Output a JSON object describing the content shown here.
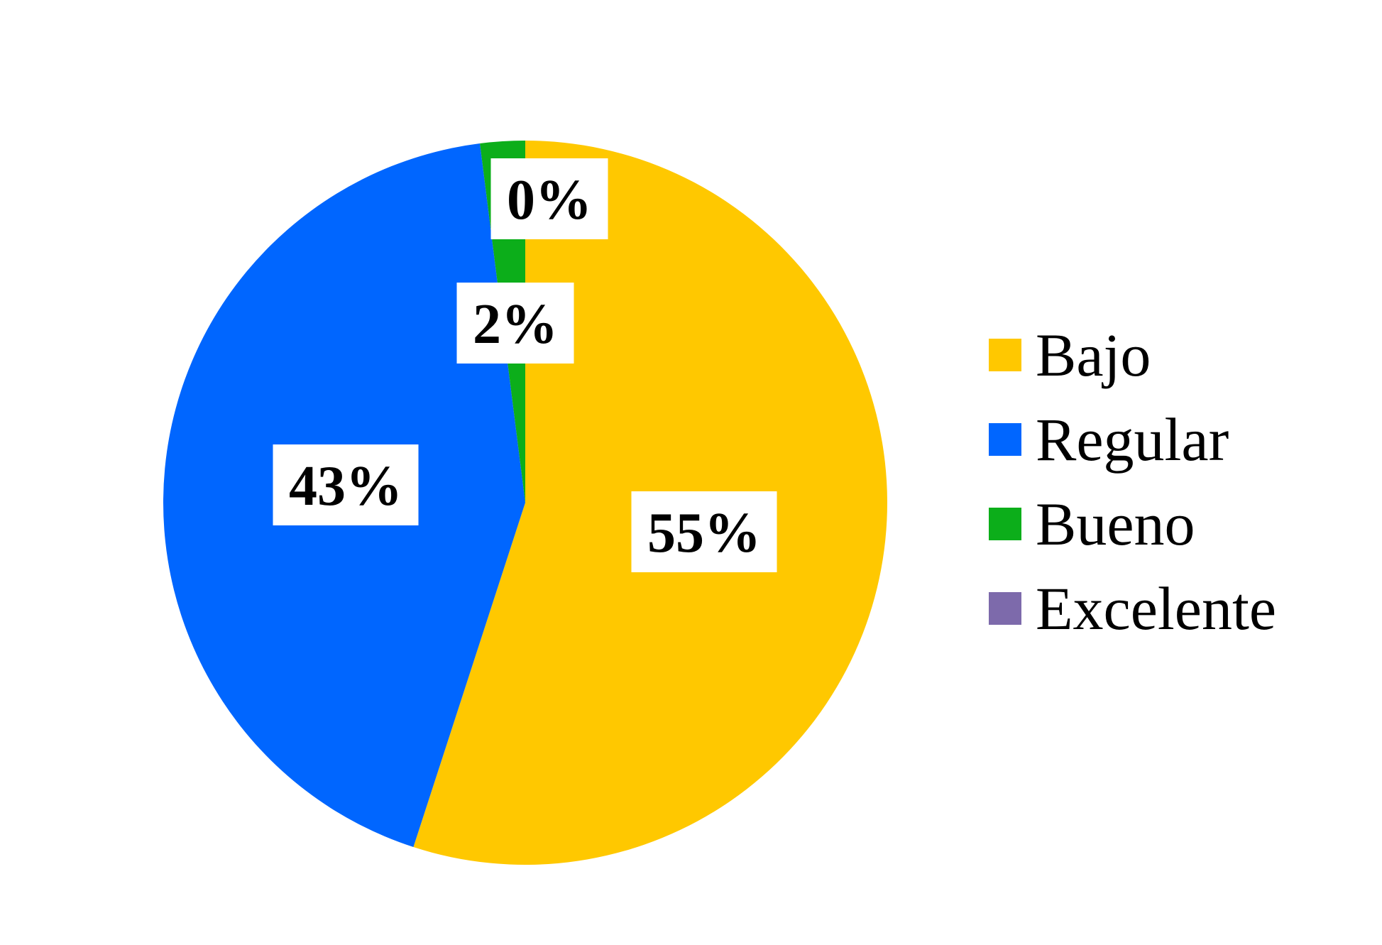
{
  "chart_data": {
    "type": "pie",
    "title": "",
    "slices": [
      {
        "name": "Bajo",
        "value": 55,
        "label": "55%",
        "color": "#FFC800"
      },
      {
        "name": "Regular",
        "value": 43,
        "label": "43%",
        "color": "#0066FF"
      },
      {
        "name": "Bueno",
        "value": 2,
        "label": "2%",
        "color": "#0CAE1A"
      },
      {
        "name": "Excelente",
        "value": 0,
        "label": "0%",
        "color": "#7D6AAB"
      }
    ],
    "legend_position": "right",
    "start_angle": "top",
    "direction": "clockwise"
  }
}
